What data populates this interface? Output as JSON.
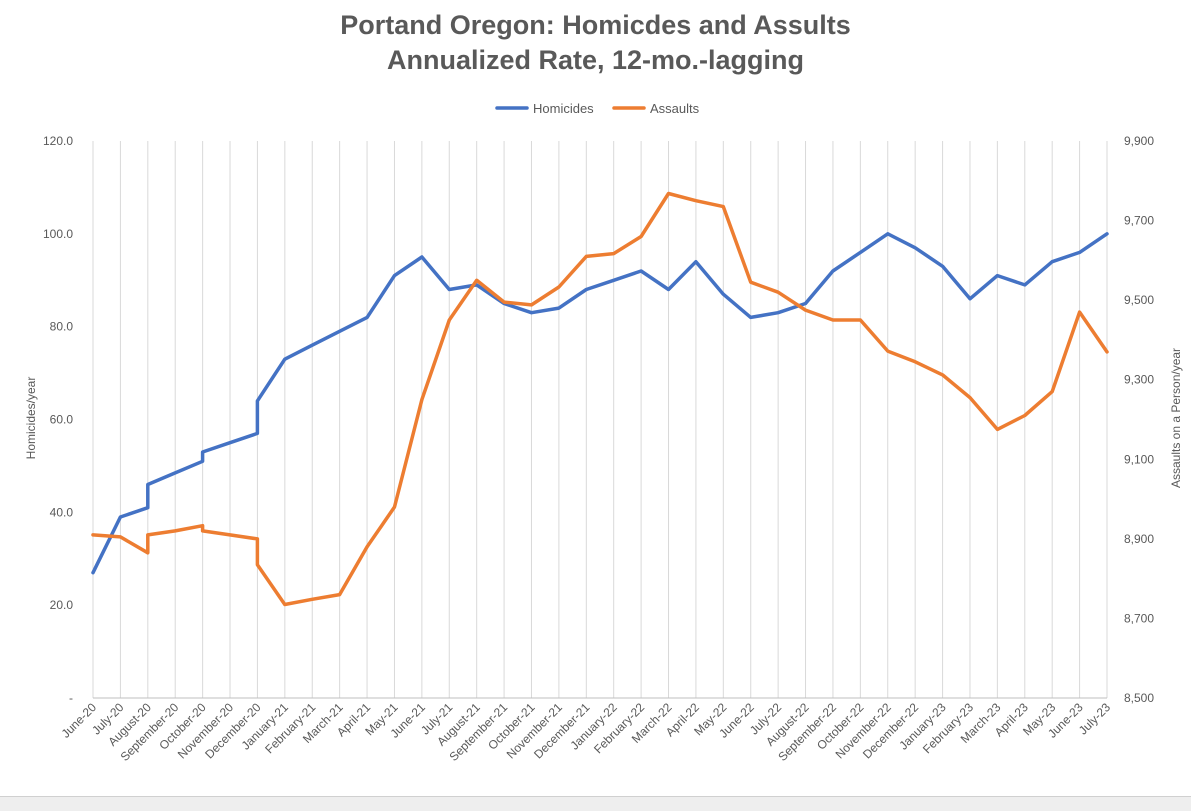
{
  "chart_data": {
    "type": "line",
    "title": "Portand Oregon: Homicdes and Assults",
    "subtitle": "Annualized Rate,  12-mo.-lagging",
    "ylabel_left": "Homicides/year",
    "ylabel_right": "Assaults on a Person/year",
    "legend_position": "top-center",
    "grid": "vertical",
    "categories": [
      "June-20",
      "July-20",
      "August-20",
      "September-20",
      "October-20",
      "November-20",
      "December-20",
      "January-21",
      "February-21",
      "March-21",
      "April-21",
      "May-21",
      "June-21",
      "July-21",
      "August-21",
      "September-21",
      "October-21",
      "November-21",
      "December-21",
      "January-22",
      "February-22",
      "March-22",
      "April-22",
      "May-22",
      "June-22",
      "July-22",
      "August-22",
      "September-22",
      "October-22",
      "November-22",
      "December-22",
      "January-23",
      "February-23",
      "March-23",
      "April-23",
      "May-23",
      "June-23",
      "July-23"
    ],
    "y_left": {
      "min": 0,
      "max": 120,
      "ticks": [
        "-",
        "20.0",
        "40.0",
        "60.0",
        "80.0",
        "100.0",
        "120.0"
      ]
    },
    "y_right": {
      "min": 8500,
      "max": 9900,
      "ticks": [
        "8,500",
        "8,700",
        "8,900",
        "9,100",
        "9,300",
        "9,500",
        "9,700",
        "9,900"
      ]
    },
    "series": [
      {
        "name": "Homicides",
        "color": "#4472C4",
        "axis": "left",
        "points": [
          [
            0,
            27
          ],
          [
            1,
            39
          ],
          [
            2,
            41
          ],
          [
            2,
            46
          ],
          [
            3,
            48.5
          ],
          [
            4,
            51
          ],
          [
            4,
            53
          ],
          [
            5,
            55
          ],
          [
            6,
            57
          ],
          [
            6,
            64
          ],
          [
            7,
            73
          ],
          [
            8,
            76
          ],
          [
            9,
            79
          ],
          [
            10,
            82
          ],
          [
            11,
            91
          ],
          [
            12,
            95
          ],
          [
            13,
            88
          ],
          [
            14,
            89
          ],
          [
            15,
            85
          ],
          [
            16,
            83
          ],
          [
            17,
            84
          ],
          [
            18,
            88
          ],
          [
            19,
            90
          ],
          [
            20,
            92
          ],
          [
            21,
            88
          ],
          [
            22,
            94
          ],
          [
            23,
            87
          ],
          [
            24,
            82
          ],
          [
            25,
            83
          ],
          [
            26,
            85
          ],
          [
            27,
            92
          ],
          [
            28,
            96
          ],
          [
            29,
            100
          ],
          [
            30,
            97
          ],
          [
            31,
            93
          ],
          [
            32,
            86
          ],
          [
            33,
            91
          ],
          [
            34,
            89
          ],
          [
            35,
            94
          ],
          [
            36,
            96
          ],
          [
            37,
            100
          ]
        ]
      },
      {
        "name": "Assaults",
        "color": "#ED7D31",
        "axis": "right",
        "points": [
          [
            0,
            8910
          ],
          [
            1,
            8905
          ],
          [
            2,
            8865
          ],
          [
            2,
            8910
          ],
          [
            3,
            8920
          ],
          [
            4,
            8933
          ],
          [
            4,
            8920
          ],
          [
            5,
            8910
          ],
          [
            6,
            8900
          ],
          [
            6,
            8835
          ],
          [
            7,
            8735
          ],
          [
            8,
            8748
          ],
          [
            9,
            8760
          ],
          [
            10,
            8880
          ],
          [
            11,
            8980
          ],
          [
            12,
            9250
          ],
          [
            13,
            9450
          ],
          [
            14,
            9550
          ],
          [
            15,
            9495
          ],
          [
            16,
            9488
          ],
          [
            17,
            9533
          ],
          [
            18,
            9610
          ],
          [
            19,
            9617
          ],
          [
            20,
            9660
          ],
          [
            21,
            9768
          ],
          [
            22,
            9750
          ],
          [
            23,
            9735
          ],
          [
            24,
            9545
          ],
          [
            25,
            9520
          ],
          [
            26,
            9475
          ],
          [
            27,
            9450
          ],
          [
            28,
            9450
          ],
          [
            29,
            9372
          ],
          [
            30,
            9345
          ],
          [
            31,
            9312
          ],
          [
            32,
            9255
          ],
          [
            33,
            9175
          ],
          [
            34,
            9210
          ],
          [
            35,
            9270
          ],
          [
            36,
            9470
          ],
          [
            37,
            9370
          ]
        ]
      }
    ]
  }
}
